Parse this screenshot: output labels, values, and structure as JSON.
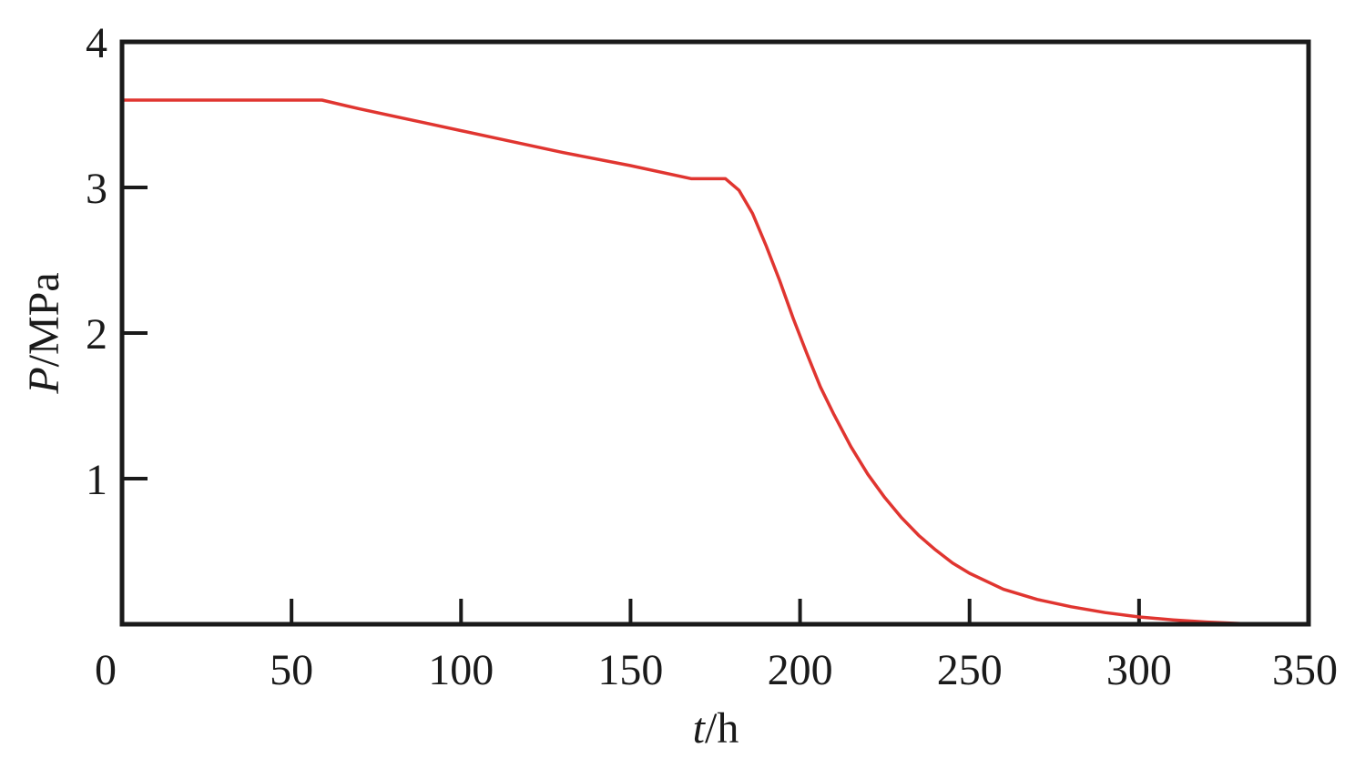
{
  "chart_data": {
    "type": "line",
    "title": "",
    "xlabel_var": "t",
    "xlabel_unit": "/h",
    "ylabel_var": "P",
    "ylabel_unit": "/MPa",
    "xlim": [
      0,
      350
    ],
    "ylim": [
      0,
      4
    ],
    "x_ticks": [
      0,
      50,
      100,
      150,
      200,
      250,
      300,
      350
    ],
    "x_tick_labels": [
      "0",
      "50",
      "100",
      "150",
      "200",
      "250",
      "300",
      "350"
    ],
    "y_ticks": [
      1,
      2,
      3,
      4
    ],
    "y_tick_labels": [
      "1",
      "2",
      "3",
      "4"
    ],
    "grid": false,
    "series": [
      {
        "color": "#e03530",
        "x": [
          0,
          59,
          70,
          90,
          110,
          130,
          150,
          168,
          178,
          182,
          186,
          190,
          194,
          198,
          202,
          206,
          210,
          215,
          220,
          225,
          230,
          235,
          240,
          245,
          250,
          260,
          270,
          280,
          290,
          300,
          310,
          320,
          330,
          337
        ],
        "y": [
          3.6,
          3.6,
          3.54,
          3.44,
          3.34,
          3.24,
          3.15,
          3.06,
          3.06,
          2.98,
          2.82,
          2.6,
          2.36,
          2.1,
          1.86,
          1.63,
          1.44,
          1.22,
          1.03,
          0.87,
          0.73,
          0.61,
          0.51,
          0.42,
          0.35,
          0.24,
          0.17,
          0.12,
          0.08,
          0.05,
          0.03,
          0.015,
          0.005,
          0.0
        ]
      }
    ]
  }
}
